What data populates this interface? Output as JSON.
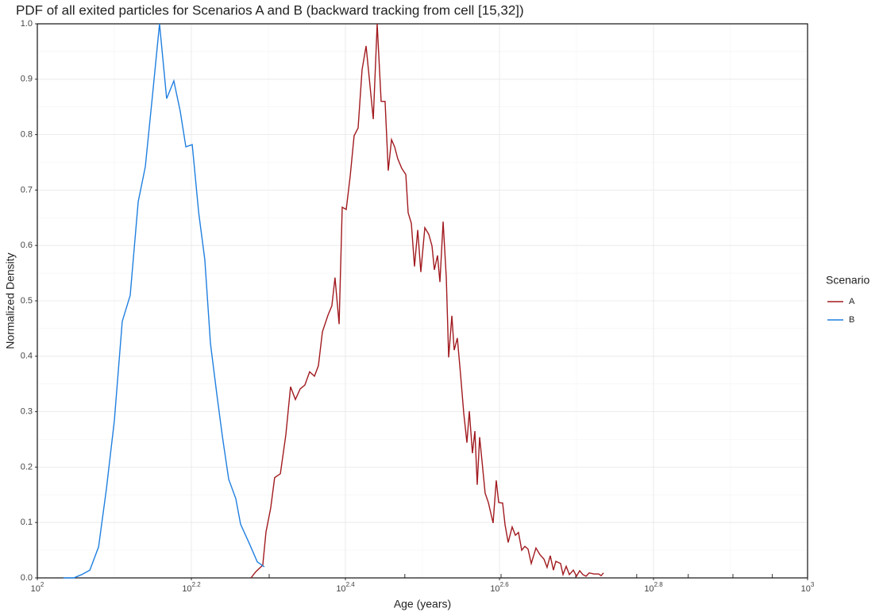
{
  "chart_data": {
    "type": "line",
    "title": "PDF of all exited particles for Scenarios A and B (backward tracking from cell [15,32])",
    "xlabel": "Age (years)",
    "ylabel": "Normalized Density",
    "legend_title": "Scenario",
    "legend": "right",
    "xscale": "log",
    "grid": true,
    "xlim": [
      100,
      1000
    ],
    "ylim": [
      0,
      1
    ],
    "xticks": [
      {
        "value": 100,
        "label": "10^2"
      },
      {
        "value": 158.49,
        "label": "10^2.2"
      },
      {
        "value": 251.19,
        "label": "10^2.4"
      },
      {
        "value": 398.11,
        "label": "10^2.6"
      },
      {
        "value": 630.96,
        "label": "10^2.8"
      },
      {
        "value": 1000,
        "label": "10^3"
      }
    ],
    "xminor": [
      125.89,
      199.53,
      316.23,
      501.19,
      794.33
    ],
    "xlogticks": [
      200,
      300,
      400,
      500,
      600,
      700,
      800,
      900
    ],
    "yticks": [
      {
        "value": 0,
        "label": "0.0"
      },
      0.1,
      0.2,
      0.3,
      0.4,
      0.5,
      0.6,
      0.7,
      0.8,
      0.9,
      {
        "value": 1,
        "label": "1.0"
      }
    ],
    "yminor": [
      0.05,
      0.15,
      0.25,
      0.35,
      0.45,
      0.55,
      0.65,
      0.75,
      0.85,
      0.95
    ],
    "series": [
      {
        "name": "A",
        "color": "#a11a1f",
        "x": [
          189.4,
          192.1,
          194.8,
          196.2,
          198.1,
          200.9,
          203.3,
          206.8,
          210.2,
          213.2,
          216.3,
          219.4,
          222.5,
          225.7,
          229.0,
          231.7,
          234.5,
          238.4,
          241.2,
          243.5,
          246.5,
          248.8,
          251.8,
          254.8,
          257.8,
          260.9,
          264.0,
          267.2,
          269.7,
          273.0,
          276.2,
          279.5,
          282.8,
          285.5,
          288.3,
          291.0,
          293.8,
          297.3,
          300.9,
          303.0,
          305.9,
          308.8,
          311.8,
          314.7,
          318.5,
          322.3,
          325.4,
          327.7,
          330.8,
          333.2,
          336.4,
          339.6,
          342.0,
          345.3,
          347.7,
          351.0,
          354.4,
          357.8,
          361.2,
          363.8,
          367.2,
          369.9,
          372.5,
          375.2,
          377.8,
          381.4,
          385.1,
          390.6,
          394.3,
          397.2,
          401.9,
          404.8,
          408.6,
          413.5,
          417.5,
          421.4,
          425.5,
          429.5,
          433.6,
          437.8,
          444.0,
          449.3,
          454.7,
          459.0,
          463.4,
          467.8,
          471.2,
          477.9,
          481.4,
          486.0,
          490.6,
          496.5,
          501.2,
          506.0,
          510.8,
          515.7,
          520.6,
          528.1,
          535.6,
          539.5,
          543.3
        ],
        "values": [
          0,
          0.011,
          0.019,
          0.023,
          0.083,
          0.126,
          0.181,
          0.188,
          0.258,
          0.345,
          0.322,
          0.341,
          0.348,
          0.372,
          0.364,
          0.383,
          0.444,
          0.474,
          0.491,
          0.542,
          0.458,
          0.669,
          0.665,
          0.725,
          0.798,
          0.812,
          0.917,
          0.96,
          0.903,
          0.828,
          1.0,
          0.86,
          0.86,
          0.735,
          0.791,
          0.778,
          0.756,
          0.739,
          0.728,
          0.659,
          0.64,
          0.562,
          0.628,
          0.552,
          0.632,
          0.62,
          0.599,
          0.556,
          0.582,
          0.534,
          0.643,
          0.542,
          0.398,
          0.473,
          0.411,
          0.433,
          0.367,
          0.297,
          0.244,
          0.301,
          0.225,
          0.265,
          0.168,
          0.254,
          0.212,
          0.153,
          0.136,
          0.099,
          0.176,
          0.136,
          0.135,
          0.096,
          0.064,
          0.092,
          0.077,
          0.082,
          0.05,
          0.057,
          0.052,
          0.026,
          0.054,
          0.042,
          0.034,
          0.019,
          0.04,
          0.014,
          0.03,
          0.026,
          0.006,
          0.021,
          0.006,
          0.014,
          0.003,
          0.013,
          0.006,
          0.003,
          0.009,
          0.007,
          0.007,
          0.004,
          0.009
        ]
      },
      {
        "name": "B",
        "color": "#1f7fe0",
        "x": [
          108.1,
          111.5,
          114.2,
          117.0,
          120.1,
          122.9,
          125.9,
          128.9,
          132.0,
          135.2,
          138.1,
          141.1,
          144.1,
          147.2,
          150.4,
          153.3,
          155.9,
          158.9,
          162.0,
          165.0,
          167.8,
          171.0,
          173.9,
          177.2,
          181.0,
          183.6,
          188.9,
          193.0,
          197.1
        ],
        "values": [
          0,
          0,
          0.006,
          0.014,
          0.056,
          0.159,
          0.284,
          0.463,
          0.51,
          0.679,
          0.742,
          0.871,
          1.0,
          0.865,
          0.897,
          0.842,
          0.778,
          0.782,
          0.659,
          0.574,
          0.423,
          0.332,
          0.255,
          0.178,
          0.143,
          0.097,
          0.059,
          0.029,
          0.02
        ]
      }
    ]
  }
}
